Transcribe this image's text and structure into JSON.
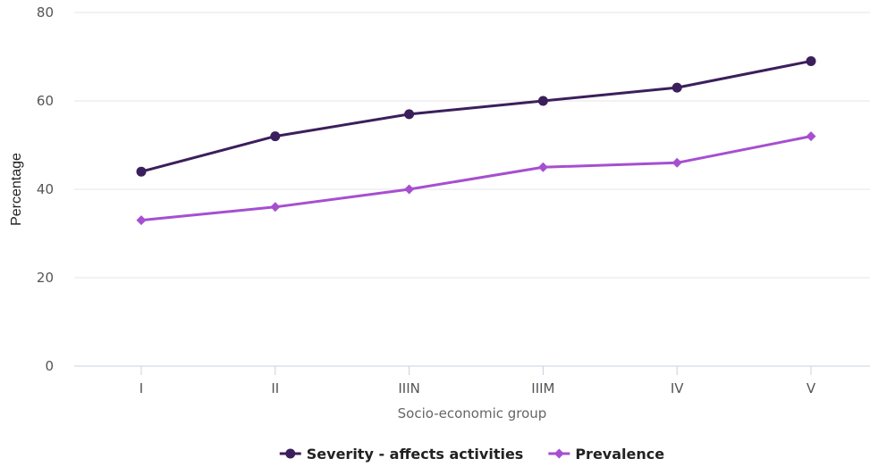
{
  "chart_data": {
    "type": "line",
    "xlabel": "Socio-economic group",
    "ylabel": "Percentage",
    "categories": [
      "I",
      "II",
      "IIIN",
      "IIIM",
      "IV",
      "V"
    ],
    "ylim": [
      0,
      80
    ],
    "yticks": [
      0,
      20,
      40,
      60,
      80
    ],
    "grid": true,
    "legend_position": "bottom-center",
    "series": [
      {
        "name": "Severity - affects activities",
        "values": [
          44,
          52,
          57,
          60,
          63,
          69
        ],
        "color": "#3b1f5c",
        "marker": "circle"
      },
      {
        "name": "Prevalence",
        "values": [
          33,
          36,
          40,
          45,
          46,
          52
        ],
        "color": "#a64fd0",
        "marker": "diamond"
      }
    ]
  }
}
